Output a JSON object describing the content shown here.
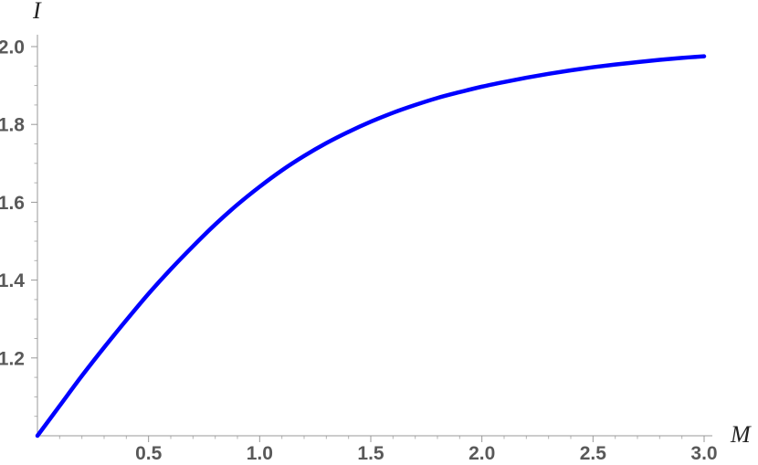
{
  "chart_data": {
    "type": "line",
    "xlabel": "M",
    "ylabel": "I",
    "xlim": [
      0,
      3
    ],
    "ylim": [
      1,
      2
    ],
    "x_ticks": [
      0.5,
      1.0,
      1.5,
      2.0,
      2.5,
      3.0
    ],
    "x_tick_labels": [
      "0.5",
      "1.0",
      "1.5",
      "2.0",
      "2.5",
      "3.0"
    ],
    "y_ticks": [
      1.2,
      1.4,
      1.6,
      1.8,
      2.0
    ],
    "y_tick_labels": [
      "1.2",
      "1.4",
      "1.6",
      "1.8",
      "2.0"
    ],
    "grid": false,
    "series": [
      {
        "color": "#0000ff",
        "x": [
          0,
          0.1,
          0.2,
          0.3,
          0.4,
          0.5,
          0.6,
          0.7,
          0.8,
          0.9,
          1.0,
          1.1,
          1.2,
          1.3,
          1.4,
          1.5,
          1.6,
          1.7,
          1.8,
          1.9,
          2.0,
          2.1,
          2.2,
          2.3,
          2.4,
          2.5,
          2.6,
          2.7,
          2.8,
          2.9,
          3.0
        ],
        "y": [
          1.0,
          1.077,
          1.154,
          1.227,
          1.297,
          1.365,
          1.428,
          1.487,
          1.543,
          1.594,
          1.64,
          1.682,
          1.719,
          1.752,
          1.781,
          1.807,
          1.83,
          1.85,
          1.868,
          1.883,
          1.897,
          1.909,
          1.92,
          1.93,
          1.939,
          1.947,
          1.954,
          1.96,
          1.966,
          1.971,
          1.975
        ]
      }
    ]
  }
}
